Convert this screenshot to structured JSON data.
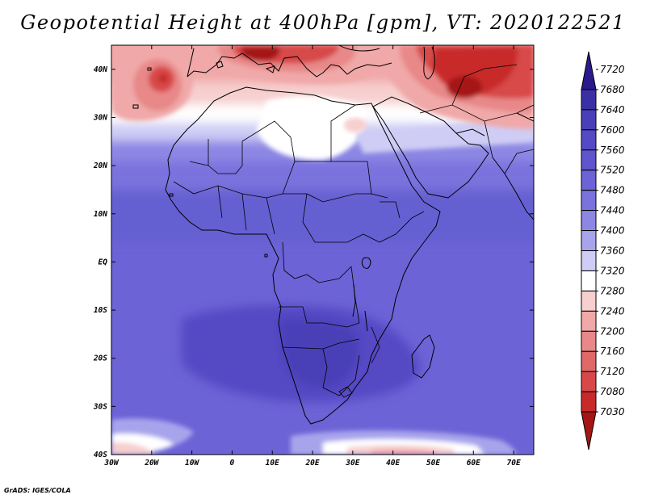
{
  "title": "Geopotential Height at 400hPa [gpm], VT: 2020122521",
  "credit": "GrADS: IGES/COLA",
  "map": {
    "variable": "Geopotential Height",
    "level": "400hPa",
    "units": "gpm",
    "valid_time": "2020122521",
    "lon_range": [
      -30,
      75
    ],
    "lat_range": [
      -40,
      45
    ],
    "lat_labels": [
      "40N",
      "30N",
      "20N",
      "10N",
      "EQ",
      "10S",
      "20S",
      "30S",
      "40S"
    ],
    "lat_values": [
      40,
      30,
      20,
      10,
      0,
      -10,
      -20,
      -30,
      -40
    ],
    "lon_labels": [
      "30W",
      "20W",
      "10W",
      "0",
      "10E",
      "20E",
      "30E",
      "40E",
      "50E",
      "60E",
      "70E"
    ],
    "lon_values": [
      -30,
      -20,
      -10,
      0,
      10,
      20,
      30,
      40,
      50,
      60,
      70
    ]
  },
  "colorbar": {
    "labels": [
      "7720",
      "7680",
      "7640",
      "7600",
      "7560",
      "7520",
      "7480",
      "7440",
      "7400",
      "7360",
      "7320",
      "7280",
      "7240",
      "7200",
      "7160",
      "7120",
      "7080",
      "7030"
    ],
    "colors_top_to_bottom": [
      "#2a1a8c",
      "#3b2fa6",
      "#4a3fb7",
      "#5549c4",
      "#6055cd",
      "#6c63d6",
      "#7a72dd",
      "#8d87e4",
      "#a8a4ec",
      "#cfcdf5",
      "#ffffff",
      "#f7cfcf",
      "#f0a8a8",
      "#e88888",
      "#e06868",
      "#d84848",
      "#c82a2a",
      "#a51515"
    ]
  },
  "colors": {
    "ocean_blue": "#6c63d6",
    "deep_blue": "#5549c4",
    "warm_red": "#d84848",
    "deep_red": "#a51515"
  }
}
